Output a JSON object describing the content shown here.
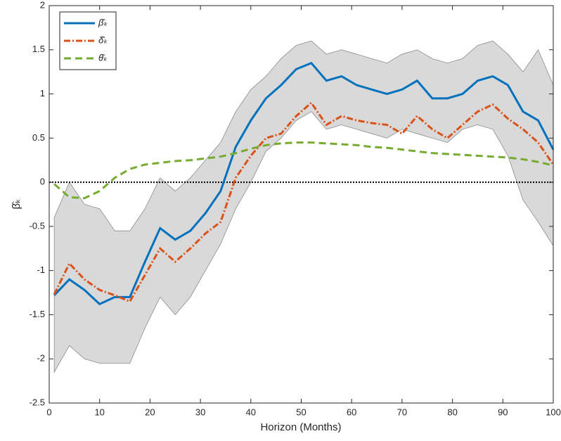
{
  "chart_data": {
    "type": "line",
    "xlabel": "Horizon (Months)",
    "ylabel": "β̂ₖ",
    "x": [
      1,
      4,
      7,
      10,
      13,
      16,
      19,
      22,
      25,
      28,
      31,
      34,
      37,
      40,
      43,
      46,
      49,
      52,
      55,
      58,
      61,
      64,
      67,
      70,
      73,
      76,
      79,
      82,
      85,
      88,
      91,
      94,
      97,
      100
    ],
    "series": [
      {
        "name": "β̂ₖ",
        "color": "#0072bd",
        "dash": "solid",
        "values": [
          -1.28,
          -1.1,
          -1.22,
          -1.38,
          -1.3,
          -1.3,
          -0.9,
          -0.52,
          -0.65,
          -0.55,
          -0.35,
          -0.1,
          0.4,
          0.7,
          0.95,
          1.1,
          1.28,
          1.35,
          1.15,
          1.2,
          1.1,
          1.05,
          1.0,
          1.05,
          1.15,
          0.95,
          0.95,
          1.0,
          1.15,
          1.2,
          1.1,
          0.8,
          0.7,
          0.37
        ]
      },
      {
        "name": "δ̂ₖ",
        "color": "#d95319",
        "dash": "dashdot",
        "values": [
          -1.27,
          -0.92,
          -1.1,
          -1.22,
          -1.28,
          -1.35,
          -1.05,
          -0.75,
          -0.9,
          -0.75,
          -0.58,
          -0.45,
          0.05,
          0.3,
          0.5,
          0.55,
          0.75,
          0.9,
          0.65,
          0.75,
          0.7,
          0.67,
          0.65,
          0.55,
          0.75,
          0.6,
          0.5,
          0.65,
          0.8,
          0.88,
          0.72,
          0.6,
          0.45,
          0.2
        ]
      },
      {
        "name": "θ̂ₖ",
        "color": "#77ac30",
        "dash": "dash",
        "values": [
          -0.02,
          -0.17,
          -0.18,
          -0.1,
          0.05,
          0.15,
          0.2,
          0.22,
          0.24,
          0.25,
          0.27,
          0.29,
          0.33,
          0.38,
          0.42,
          0.44,
          0.45,
          0.45,
          0.44,
          0.43,
          0.42,
          0.4,
          0.39,
          0.37,
          0.35,
          0.33,
          0.32,
          0.31,
          0.3,
          0.29,
          0.28,
          0.26,
          0.23,
          0.19
        ]
      }
    ],
    "band": {
      "color": "#d9d9d9",
      "edge": "#8c8c8c",
      "upper": [
        -0.4,
        0.0,
        -0.25,
        -0.3,
        -0.55,
        -0.55,
        -0.3,
        0.05,
        -0.1,
        0.05,
        0.25,
        0.45,
        0.8,
        1.05,
        1.2,
        1.4,
        1.55,
        1.6,
        1.45,
        1.5,
        1.45,
        1.4,
        1.35,
        1.45,
        1.5,
        1.4,
        1.35,
        1.4,
        1.55,
        1.6,
        1.45,
        1.25,
        1.5,
        1.1
      ],
      "lower": [
        -2.15,
        -1.85,
        -2.0,
        -2.05,
        -2.05,
        -2.05,
        -1.65,
        -1.3,
        -1.5,
        -1.3,
        -1.0,
        -0.7,
        -0.3,
        0.0,
        0.35,
        0.5,
        0.7,
        0.8,
        0.6,
        0.65,
        0.6,
        0.55,
        0.5,
        0.6,
        0.55,
        0.5,
        0.45,
        0.6,
        0.65,
        0.6,
        0.3,
        -0.2,
        -0.45,
        -0.72
      ]
    },
    "hline": 0,
    "xlim": [
      0,
      100
    ],
    "xticks": [
      0,
      10,
      20,
      30,
      40,
      50,
      60,
      70,
      80,
      90,
      100
    ],
    "ylim": [
      -2.5,
      2
    ],
    "yticks": [
      -2.5,
      -2,
      -1.5,
      -1,
      -0.5,
      0,
      0.5,
      1,
      1.5,
      2
    ],
    "legend": "upper left"
  }
}
